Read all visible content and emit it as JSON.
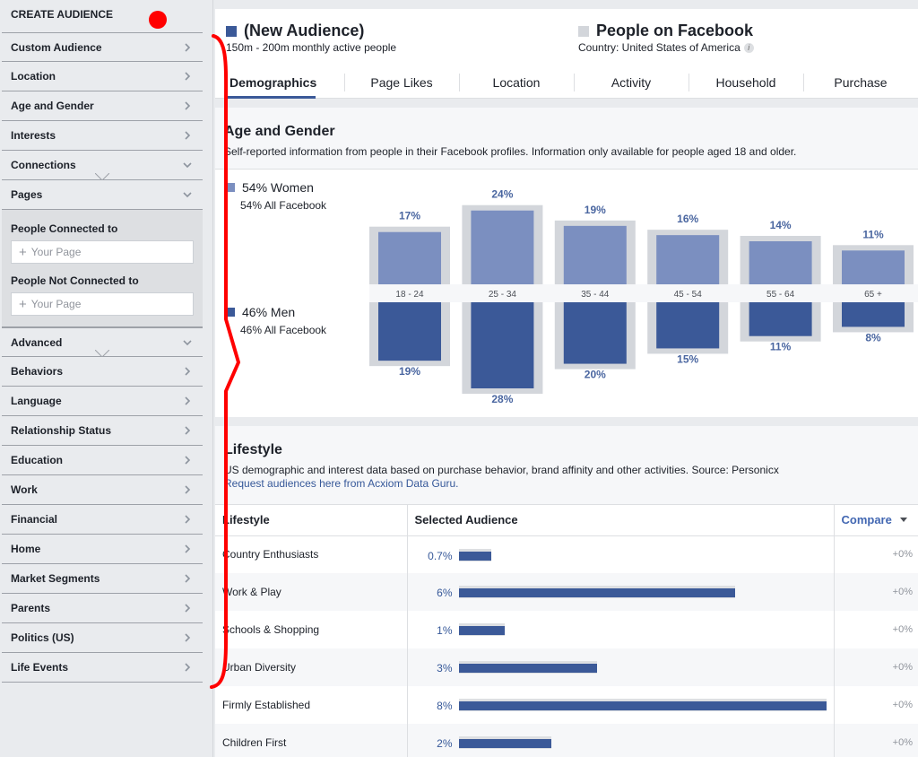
{
  "sidebar": {
    "title": "CREATE AUDIENCE",
    "items_top": [
      {
        "label": "Custom Audience",
        "chev": "right"
      },
      {
        "label": "Location",
        "chev": "right"
      },
      {
        "label": "Age and Gender",
        "chev": "right"
      },
      {
        "label": "Interests",
        "chev": "right"
      },
      {
        "label": "Connections",
        "chev": "down"
      },
      {
        "label": "Pages",
        "chev": "down"
      }
    ],
    "pages_panel": {
      "connected_label": "People Connected to",
      "connected_placeholder": "Your Page",
      "not_connected_label": "People Not Connected to",
      "not_connected_placeholder": "Your Page"
    },
    "items_bottom": [
      {
        "label": "Advanced",
        "chev": "down"
      },
      {
        "label": "Behaviors",
        "chev": "right"
      },
      {
        "label": "Language",
        "chev": "right"
      },
      {
        "label": "Relationship Status",
        "chev": "right"
      },
      {
        "label": "Education",
        "chev": "right"
      },
      {
        "label": "Work",
        "chev": "right"
      },
      {
        "label": "Financial",
        "chev": "right"
      },
      {
        "label": "Home",
        "chev": "right"
      },
      {
        "label": "Market Segments",
        "chev": "right"
      },
      {
        "label": "Parents",
        "chev": "right"
      },
      {
        "label": "Politics (US)",
        "chev": "right"
      },
      {
        "label": "Life Events",
        "chev": "right"
      }
    ]
  },
  "header": {
    "audience_title": "(New Audience)",
    "audience_sub": "150m - 200m monthly active people",
    "fb_title": "People on Facebook",
    "fb_sub": "Country: United States of America",
    "info_glyph": "i"
  },
  "tabs": [
    "Demographics",
    "Page Likes",
    "Location",
    "Activity",
    "Household",
    "Purchase"
  ],
  "age_gender": {
    "title": "Age and Gender",
    "desc": "Self-reported information from people in their Facebook profiles. Information only available for people aged 18 and older.",
    "women_label": "54% Women",
    "women_all": "54% All Facebook",
    "men_label": "46% Men",
    "men_all": "46% All Facebook"
  },
  "chart_data": {
    "type": "bar",
    "categories": [
      "18 - 24",
      "25 - 34",
      "35 - 44",
      "45 - 54",
      "55 - 64",
      "65 +"
    ],
    "series": [
      {
        "name": "54% Women",
        "values": [
          17,
          24,
          19,
          16,
          14,
          11
        ],
        "labels": [
          "17%",
          "24%",
          "19%",
          "16%",
          "14%",
          "11%"
        ]
      },
      {
        "name": "46% Men",
        "values": [
          19,
          28,
          20,
          15,
          11,
          8
        ],
        "labels": [
          "19%",
          "28%",
          "20%",
          "15%",
          "11%",
          "8%"
        ]
      }
    ],
    "facebook_women": [
      17,
      24,
      19,
      16,
      14,
      11
    ],
    "facebook_men": [
      19,
      28,
      20,
      15,
      11,
      8
    ]
  },
  "lifestyle": {
    "title": "Lifestyle",
    "desc": "US demographic and interest data based on purchase behavior, brand affinity and other activities. Source: Personicx",
    "link": "Request audiences here from Acxiom Data Guru.",
    "col1": "Lifestyle",
    "col2": "Selected Audience",
    "col3": "Compare",
    "rows": [
      {
        "name": "Country Enthusiasts",
        "pct": "0.7%",
        "value": 0.7,
        "fb": 0.7,
        "compare": "+0%"
      },
      {
        "name": "Work & Play",
        "pct": "6%",
        "value": 6,
        "fb": 6,
        "compare": "+0%"
      },
      {
        "name": "Schools & Shopping",
        "pct": "1%",
        "value": 1,
        "fb": 1,
        "compare": "+0%"
      },
      {
        "name": "Urban Diversity",
        "pct": "3%",
        "value": 3,
        "fb": 3,
        "compare": "+0%"
      },
      {
        "name": "Firmly Established",
        "pct": "8%",
        "value": 8,
        "fb": 8,
        "compare": "+0%"
      },
      {
        "name": "Children First",
        "pct": "2%",
        "value": 2,
        "fb": 2,
        "compare": "+0%"
      }
    ]
  },
  "colors": {
    "audience": "#3b5998",
    "audience_light": "#7b8fc0",
    "facebook": "#d3d6db",
    "annotation": "#ff0000"
  }
}
